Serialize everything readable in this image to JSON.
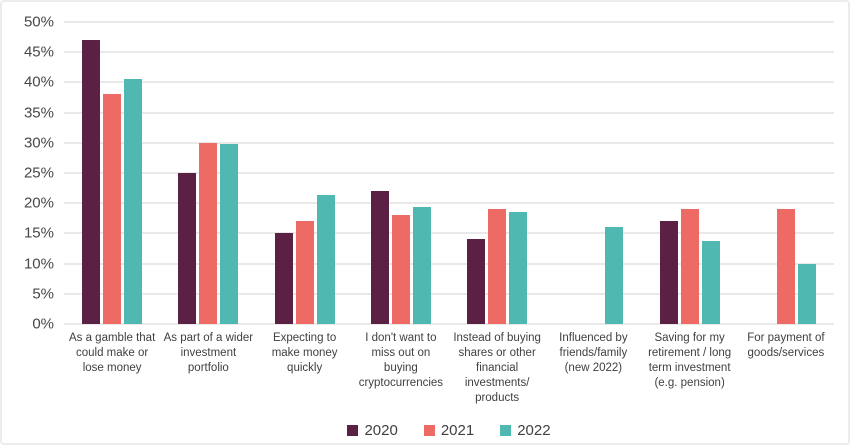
{
  "chart_data": {
    "type": "bar",
    "title": "",
    "xlabel": "",
    "ylabel": "",
    "ylim": [
      0,
      50
    ],
    "ytick_step": 5,
    "yticks": [
      "0%",
      "5%",
      "10%",
      "15%",
      "20%",
      "25%",
      "30%",
      "35%",
      "40%",
      "45%",
      "50%"
    ],
    "grid": true,
    "legend_position": "bottom",
    "categories": [
      "As a gamble that could make or lose money",
      "As part of a wider investment portfolio",
      "Expecting to make money quickly",
      "I don't want to miss out on buying cryptocurrencies",
      "Instead of buying shares or other financial investments/ products",
      "Influenced by friends/family (new 2022)",
      "Saving for my retirement / long term investment (e.g. pension)",
      "For payment of goods/services"
    ],
    "series": [
      {
        "name": "2020",
        "color": "#5a2144",
        "values": [
          47,
          25,
          15,
          22,
          14,
          null,
          17,
          null
        ]
      },
      {
        "name": "2021",
        "color": "#ee6a64",
        "values": [
          38,
          30,
          17,
          18,
          19,
          null,
          19,
          19
        ]
      },
      {
        "name": "2022",
        "color": "#4fb9b1",
        "values": [
          40.5,
          29.8,
          21.3,
          19.4,
          18.6,
          16,
          13.8,
          10
        ]
      }
    ]
  },
  "colors": {
    "gridline": "#e9e9e9",
    "axis_label": "#474747",
    "category_label": "#404040",
    "card_border": "#ececec",
    "background": "#ffffff"
  }
}
